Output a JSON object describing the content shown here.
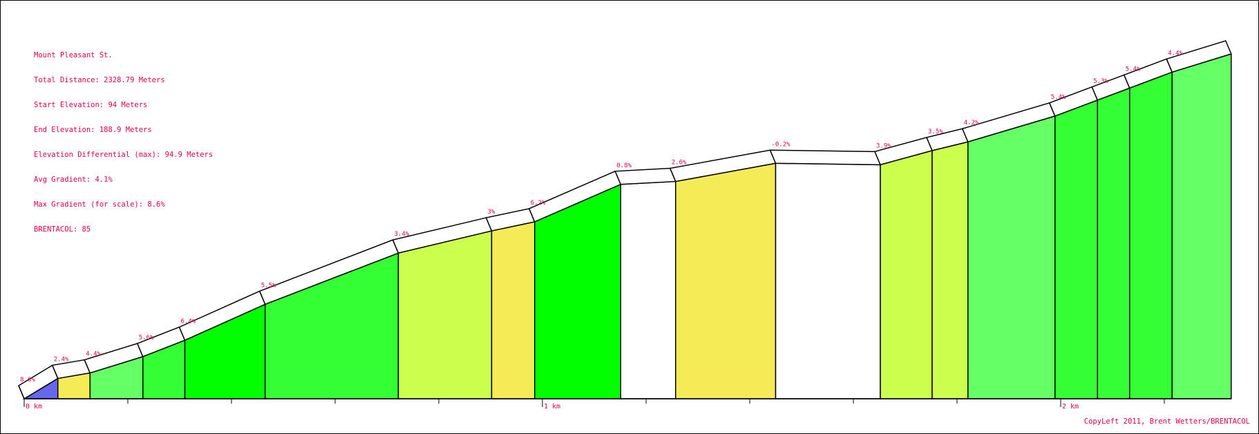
{
  "info": {
    "title": "Mount Pleasant St.",
    "total_distance": "Total Distance: 2328.79 Meters",
    "start_elevation": "Start Elevation: 94 Meters",
    "end_elevation": "End Elevation: 188.9 Meters",
    "elevation_differential": "Elevation Differential (max): 94.9 Meters",
    "avg_gradient": "Avg Gradient: 4.1%",
    "max_gradient": "Max Gradient (for scale): 8.6%",
    "brentacol": "BRENTACOL: 85"
  },
  "copyright": "CopyLeft 2011, Brent Wetters/BRENTACOL",
  "chart_data": {
    "type": "area",
    "x_unit": "km",
    "x_ticks": [
      {
        "km": 0,
        "label": "0 km"
      },
      {
        "km": 1,
        "label": "1 km"
      },
      {
        "km": 2,
        "label": "2 km"
      }
    ],
    "minor_tick_step_km": 0.2,
    "total_km": 2.32879,
    "elevation_min": 94,
    "elevation_max": 188.9,
    "segments": [
      {
        "start_km": 0.0,
        "end_km": 0.065,
        "start_elev": 94.0,
        "end_elev": 99.6,
        "gradient_label": "8.6%",
        "color": "#6666ee"
      },
      {
        "start_km": 0.065,
        "end_km": 0.127,
        "start_elev": 99.6,
        "end_elev": 101.1,
        "gradient_label": "2.4%",
        "color": "#f5ea58"
      },
      {
        "start_km": 0.127,
        "end_km": 0.229,
        "start_elev": 101.1,
        "end_elev": 105.6,
        "gradient_label": "4.4%",
        "color": "#66ff66"
      },
      {
        "start_km": 0.229,
        "end_km": 0.31,
        "start_elev": 105.6,
        "end_elev": 110.1,
        "gradient_label": "5.6%",
        "color": "#33ff33"
      },
      {
        "start_km": 0.31,
        "end_km": 0.465,
        "start_elev": 110.1,
        "end_elev": 120.0,
        "gradient_label": "6.4%",
        "color": "#00ff00"
      },
      {
        "start_km": 0.465,
        "end_km": 0.722,
        "start_elev": 120.0,
        "end_elev": 134.1,
        "gradient_label": "5.5%",
        "color": "#33ff33"
      },
      {
        "start_km": 0.722,
        "end_km": 0.902,
        "start_elev": 134.1,
        "end_elev": 140.2,
        "gradient_label": "3.4%",
        "color": "#ccff4d"
      },
      {
        "start_km": 0.902,
        "end_km": 0.985,
        "start_elev": 140.2,
        "end_elev": 142.7,
        "gradient_label": "3%",
        "color": "#f5ea58"
      },
      {
        "start_km": 0.985,
        "end_km": 1.151,
        "start_elev": 142.7,
        "end_elev": 153.0,
        "gradient_label": "6.2%",
        "color": "#00ff00"
      },
      {
        "start_km": 1.151,
        "end_km": 1.257,
        "start_elev": 153.0,
        "end_elev": 153.8,
        "gradient_label": "0.8%",
        "color": "#ffffff"
      },
      {
        "start_km": 1.257,
        "end_km": 1.45,
        "start_elev": 153.8,
        "end_elev": 158.8,
        "gradient_label": "2.6%",
        "color": "#f5ea58"
      },
      {
        "start_km": 1.45,
        "end_km": 1.652,
        "start_elev": 158.8,
        "end_elev": 158.4,
        "gradient_label": "-0.2%",
        "color": "#ffffff"
      },
      {
        "start_km": 1.652,
        "end_km": 1.752,
        "start_elev": 158.4,
        "end_elev": 162.3,
        "gradient_label": "3.9%",
        "color": "#ccff4d"
      },
      {
        "start_km": 1.752,
        "end_km": 1.821,
        "start_elev": 162.3,
        "end_elev": 164.7,
        "gradient_label": "3.5%",
        "color": "#ccff4d"
      },
      {
        "start_km": 1.821,
        "end_km": 1.989,
        "start_elev": 164.7,
        "end_elev": 171.8,
        "gradient_label": "4.2%",
        "color": "#66ff66"
      },
      {
        "start_km": 1.989,
        "end_km": 2.071,
        "start_elev": 171.8,
        "end_elev": 176.2,
        "gradient_label": "5.4%",
        "color": "#33ff33"
      },
      {
        "start_km": 2.071,
        "end_km": 2.133,
        "start_elev": 176.2,
        "end_elev": 179.5,
        "gradient_label": "5.3%",
        "color": "#33ff33"
      },
      {
        "start_km": 2.133,
        "end_km": 2.215,
        "start_elev": 179.5,
        "end_elev": 183.9,
        "gradient_label": "5.4%",
        "color": "#33ff33"
      },
      {
        "start_km": 2.215,
        "end_km": 2.329,
        "start_elev": 183.9,
        "end_elev": 188.9,
        "gradient_label": "4.4%",
        "color": "#66ff66"
      }
    ]
  }
}
